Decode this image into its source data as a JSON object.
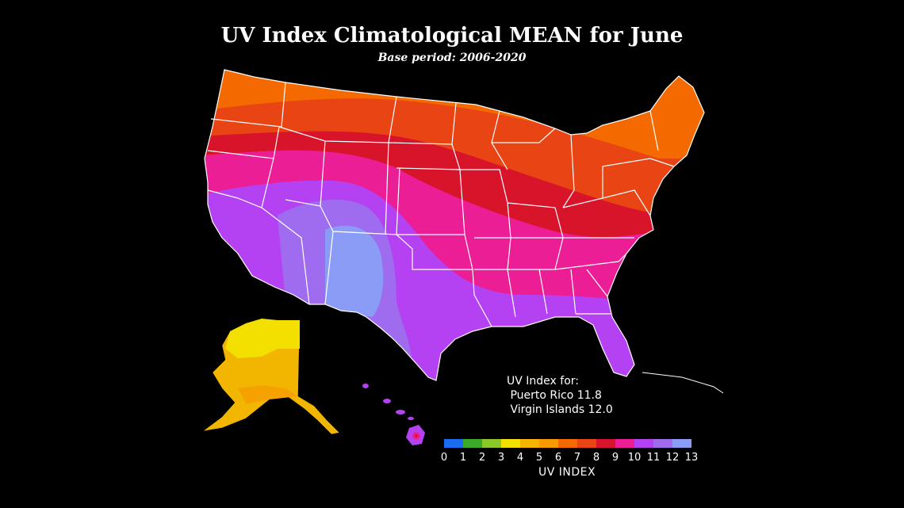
{
  "title": "UV Index Climatological MEAN for June",
  "subtitle": "Base period: 2006-2020",
  "note": {
    "heading": "UV Index for:",
    "lines": [
      " Puerto Rico 11.8",
      " Virgin Islands 12.0"
    ]
  },
  "legend": {
    "title": "UV INDEX",
    "ticks": [
      "0",
      "1",
      "2",
      "3",
      "4",
      "5",
      "6",
      "7",
      "8",
      "9",
      "10",
      "11",
      "12",
      "13"
    ],
    "colors": [
      "#1a6cf0",
      "#3caa28",
      "#8bc82a",
      "#f4e000",
      "#f5b400",
      "#f59a00",
      "#f46a00",
      "#e84414",
      "#d8142a",
      "#ec1e96",
      "#b442f2",
      "#9f6cf0",
      "#8a9cf6"
    ]
  }
}
